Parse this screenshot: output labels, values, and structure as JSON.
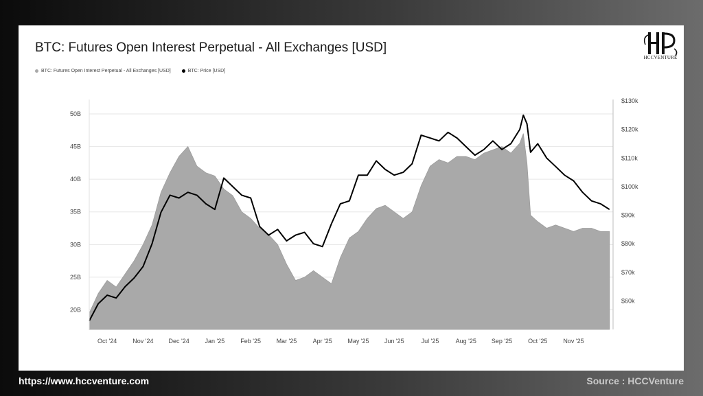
{
  "footer": {
    "url": "https://www.hccventure.com",
    "source": "Source : HCCVenture"
  },
  "brand": {
    "logo_text": "HCCVENTURE"
  },
  "colors": {
    "oi_fill": "#a9a9a9",
    "price_line": "#000000",
    "grid": "#e6e6e6"
  },
  "chart_data": {
    "type": "area",
    "title": "BTC: Futures Open Interest Perpetual - All Exchanges [USD]",
    "legend": [
      {
        "label": "BTC: Futures Open Interest Perpetual - All Exchanges [USD]",
        "color": "#a9a9a9"
      },
      {
        "label": "BTC: Price [USD]",
        "color": "#000000"
      }
    ],
    "x_labels": [
      "Oct '24",
      "Nov '24",
      "Dec '24",
      "Jan '25",
      "Feb '25",
      "Mar '25",
      "Apr '25",
      "May '25",
      "Jun '25",
      "Jul '25",
      "Aug '25",
      "Sep '25",
      "Oct '25",
      "Nov '25"
    ],
    "x_range": [
      0,
      14.6
    ],
    "y_left": {
      "ticks": [
        "20B",
        "25B",
        "30B",
        "35B",
        "40B",
        "45B",
        "50B"
      ],
      "values": [
        20,
        25,
        30,
        35,
        40,
        45,
        50
      ],
      "range": [
        17,
        52
      ]
    },
    "y_right": {
      "ticks": [
        "$60k",
        "$70k",
        "$80k",
        "$90k",
        "$100k",
        "$110k",
        "$120k",
        "$130k"
      ],
      "values": [
        60,
        70,
        80,
        90,
        100,
        110,
        120,
        130
      ],
      "range": [
        50,
        130
      ]
    },
    "series": [
      {
        "name": "BTC: Futures Open Interest Perpetual - All Exchanges [USD]",
        "axis": "left",
        "unit": "B USD",
        "x": [
          0,
          0.25,
          0.5,
          0.75,
          1.0,
          1.25,
          1.5,
          1.75,
          2.0,
          2.25,
          2.5,
          2.75,
          3.0,
          3.25,
          3.5,
          3.75,
          4.0,
          4.25,
          4.5,
          4.75,
          5.0,
          5.25,
          5.5,
          5.75,
          6.0,
          6.25,
          6.5,
          6.75,
          7.0,
          7.25,
          7.5,
          7.75,
          8.0,
          8.25,
          8.5,
          8.75,
          9.0,
          9.25,
          9.5,
          9.75,
          10.0,
          10.25,
          10.5,
          10.75,
          11.0,
          11.25,
          11.5,
          11.75,
          12.0,
          12.1,
          12.2,
          12.3,
          12.5,
          12.75,
          13.0,
          13.25,
          13.5,
          13.75,
          14.0,
          14.25,
          14.5
        ],
        "values": [
          19.5,
          22.5,
          24.5,
          23.5,
          25.5,
          27.5,
          30,
          33,
          38,
          41,
          43.5,
          45,
          42,
          41,
          40.5,
          38.5,
          37.5,
          35,
          34,
          32.5,
          31.5,
          30,
          27,
          24.5,
          25,
          26,
          25,
          24,
          28,
          31,
          32,
          34,
          35.5,
          36,
          35,
          34,
          35,
          39,
          42,
          43,
          42.5,
          43.5,
          43.5,
          43,
          44,
          44.5,
          45,
          44,
          45.5,
          47,
          42.5,
          34.5,
          33.5,
          32.5,
          33,
          32.5,
          32,
          32.5,
          32.5,
          32,
          32
        ]
      },
      {
        "name": "BTC: Price [USD]",
        "axis": "right",
        "unit": "k USD",
        "x": [
          0,
          0.25,
          0.5,
          0.75,
          1.0,
          1.25,
          1.5,
          1.75,
          2.0,
          2.25,
          2.5,
          2.75,
          3.0,
          3.25,
          3.5,
          3.75,
          4.0,
          4.25,
          4.5,
          4.75,
          5.0,
          5.25,
          5.5,
          5.75,
          6.0,
          6.25,
          6.5,
          6.75,
          7.0,
          7.25,
          7.5,
          7.75,
          8.0,
          8.25,
          8.5,
          8.75,
          9.0,
          9.25,
          9.5,
          9.75,
          10.0,
          10.25,
          10.5,
          10.75,
          11.0,
          11.25,
          11.5,
          11.75,
          12.0,
          12.1,
          12.2,
          12.3,
          12.5,
          12.75,
          13.0,
          13.25,
          13.5,
          13.75,
          14.0,
          14.25,
          14.5
        ],
        "values": [
          53,
          59,
          62,
          61,
          65,
          68,
          72,
          80,
          91,
          97,
          96,
          98,
          97,
          94,
          92,
          103,
          100,
          97,
          96,
          86,
          83,
          85,
          81,
          83,
          84,
          80,
          79,
          87,
          94,
          95,
          104,
          104,
          109,
          106,
          104,
          105,
          108,
          118,
          117,
          116,
          119,
          117,
          114,
          111,
          113,
          116,
          113,
          115,
          120,
          125,
          122,
          112,
          115,
          110,
          107,
          104,
          102,
          98,
          95,
          94,
          92
        ]
      }
    ]
  }
}
